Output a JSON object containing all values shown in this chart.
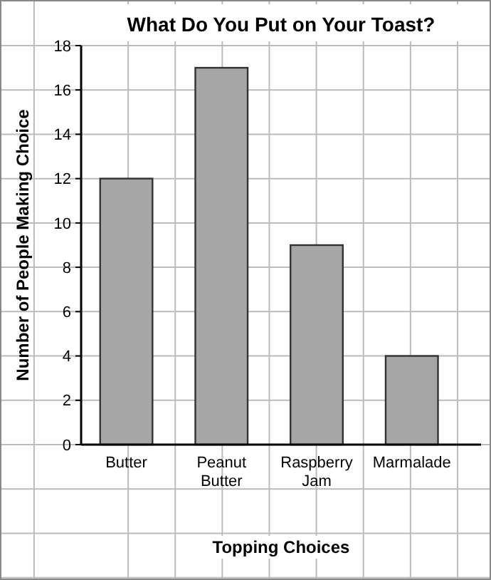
{
  "chart_data": {
    "type": "bar",
    "title": "What Do You Put on Your Toast?",
    "xlabel": "Topping Choices",
    "ylabel": "Number of People Making Choice",
    "categories": [
      "Butter",
      "Peanut Butter",
      "Raspberry Jam",
      "Marmalade"
    ],
    "values": [
      12,
      17,
      9,
      4
    ],
    "color": "#a6a6a6",
    "ylim": [
      0,
      18
    ],
    "yticks": [
      0,
      2,
      4,
      6,
      8,
      10,
      12,
      14,
      16,
      18
    ],
    "grid": true
  }
}
